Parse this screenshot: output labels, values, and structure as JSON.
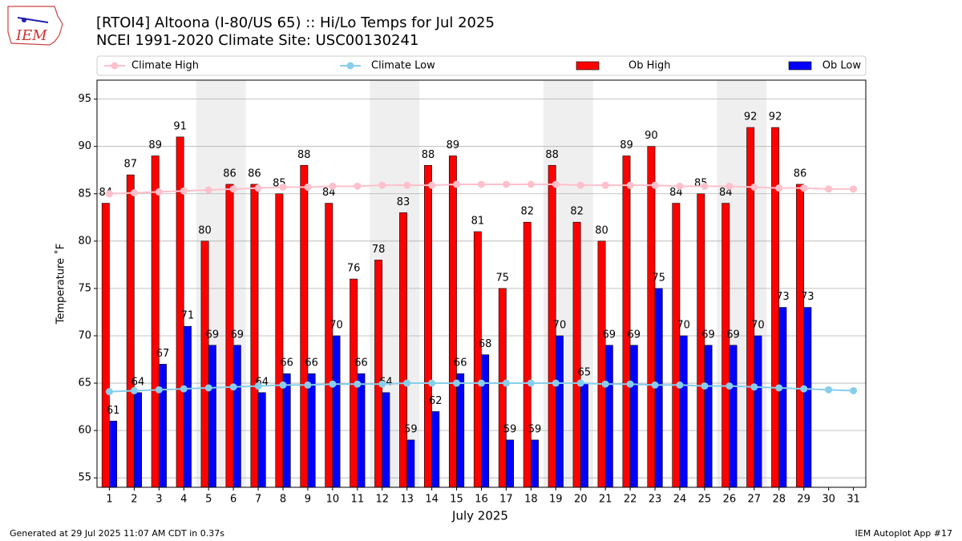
{
  "chart_data": {
    "type": "bar",
    "title": "[RTOI4] Altoona (I-80/US 65) :: Hi/Lo Temps for Jul 2025",
    "subtitle": "NCEI 1991-2020 Climate Site: USC00130241",
    "y_label": "Temperature ˚F",
    "x_label": "July 2025",
    "footer_left": "Generated at 29 Jul 2025 11:07 AM CDT in 0.37s",
    "footer_right": "IEM Autoplot App #17",
    "logo_text": "IEM",
    "x": [
      1,
      2,
      3,
      4,
      5,
      6,
      7,
      8,
      9,
      10,
      11,
      12,
      13,
      14,
      15,
      16,
      17,
      18,
      19,
      20,
      21,
      22,
      23,
      24,
      25,
      26,
      27,
      28,
      29,
      30,
      31
    ],
    "xlim": [
      0.5,
      31.5
    ],
    "xticks": [
      1,
      2,
      3,
      4,
      5,
      6,
      7,
      8,
      9,
      10,
      11,
      12,
      13,
      14,
      15,
      16,
      17,
      18,
      19,
      20,
      21,
      22,
      23,
      24,
      25,
      26,
      27,
      28,
      29,
      30,
      31
    ],
    "ylim": [
      54,
      97
    ],
    "yticks": [
      55,
      60,
      65,
      70,
      75,
      80,
      85,
      90,
      95
    ],
    "grid": true,
    "legend": "top",
    "shaded_days": [
      [
        5,
        6
      ],
      [
        12,
        13
      ],
      [
        19,
        20
      ],
      [
        26,
        27
      ]
    ],
    "series": [
      {
        "name": "Climate High",
        "type": "line",
        "color": "#ffc0cb",
        "values": [
          85.0,
          85.1,
          85.2,
          85.3,
          85.4,
          85.5,
          85.6,
          85.7,
          85.7,
          85.8,
          85.8,
          85.9,
          85.9,
          85.9,
          86.0,
          86.0,
          86.0,
          86.0,
          86.0,
          85.9,
          85.9,
          85.9,
          85.9,
          85.8,
          85.8,
          85.8,
          85.7,
          85.6,
          85.6,
          85.5,
          85.5
        ]
      },
      {
        "name": "Climate Low",
        "type": "line",
        "color": "#87ceeb",
        "values": [
          64.1,
          64.2,
          64.3,
          64.4,
          64.5,
          64.6,
          64.7,
          64.8,
          64.8,
          64.9,
          64.9,
          64.9,
          65.0,
          65.0,
          65.0,
          65.0,
          65.0,
          65.0,
          65.0,
          65.0,
          64.9,
          64.9,
          64.8,
          64.8,
          64.7,
          64.7,
          64.6,
          64.5,
          64.4,
          64.3,
          64.2
        ]
      },
      {
        "name": "Ob High",
        "type": "bar",
        "color": "#ff0000",
        "values": [
          84,
          87,
          89,
          91,
          80,
          86,
          86,
          85,
          88,
          84,
          76,
          78,
          83,
          88,
          89,
          81,
          75,
          82,
          88,
          82,
          80,
          89,
          90,
          84,
          85,
          84,
          92,
          92,
          86,
          null,
          null
        ]
      },
      {
        "name": "Ob Low",
        "type": "bar",
        "color": "#0000ff",
        "values": [
          61,
          64,
          67,
          71,
          69,
          69,
          64,
          66,
          66,
          70,
          66,
          64,
          59,
          62,
          66,
          68,
          59,
          59,
          70,
          65,
          69,
          69,
          75,
          70,
          69,
          69,
          70,
          73,
          73,
          null,
          null
        ]
      }
    ]
  }
}
